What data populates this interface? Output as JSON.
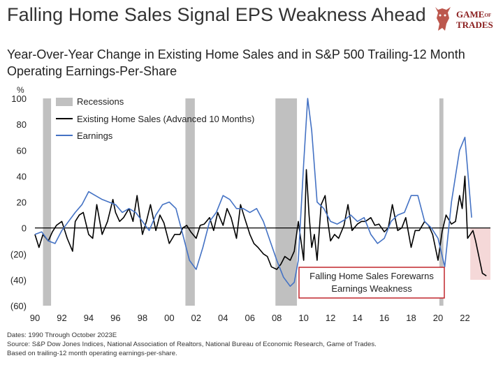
{
  "headline": "Falling Home Sales Signal EPS Weakness Ahead",
  "logo": {
    "line1": "GAME",
    "of": "OF",
    "line2": "TRADES"
  },
  "subtitle_line1": "Year-Over-Year Change in Existing Home Sales and in S&P 500 Trailing-12 Month",
  "subtitle_line2": "Operating Earnings-Per-Share",
  "colors": {
    "earnings": "#4472c4",
    "home_sales": "#000000",
    "recession": "#c0c0c0",
    "highlight": "#f4d4d4",
    "callout_border": "#c0262c"
  },
  "chart_data": {
    "type": "line",
    "ylabel": "%",
    "ylim": [
      -60,
      100
    ],
    "xlim": [
      1990,
      2023.9
    ],
    "y_ticks": [
      100,
      80,
      60,
      40,
      20,
      0,
      -20,
      -40,
      -60
    ],
    "y_tick_labels": [
      "100",
      "80",
      "60",
      "40",
      "20",
      "0",
      "(20)",
      "(40)",
      "(60)"
    ],
    "x_ticks": [
      1990,
      1992,
      1994,
      1996,
      1998,
      2000,
      2002,
      2004,
      2006,
      2008,
      2010,
      2012,
      2014,
      2016,
      2018,
      2020,
      2022
    ],
    "x_tick_labels": [
      "90",
      "92",
      "94",
      "96",
      "98",
      "00",
      "02",
      "04",
      "06",
      "08",
      "10",
      "12",
      "14",
      "16",
      "18",
      "20",
      "22"
    ],
    "legend": [
      "Recessions",
      "Existing Home Sales (Advanced 10 Months)",
      "Earnings"
    ],
    "legend_position": "top-left",
    "recessions": [
      [
        1990.6,
        1991.2
      ],
      [
        2001.2,
        2001.9
      ],
      [
        2007.9,
        2009.5
      ],
      [
        2020.1,
        2020.4
      ]
    ],
    "series": [
      {
        "name": "Existing Home Sales (Advanced 10 Months)",
        "x": [
          1990,
          1990.3,
          1990.6,
          1991,
          1991.3,
          1991.6,
          1992,
          1992.4,
          1992.8,
          1993,
          1993.3,
          1993.6,
          1994,
          1994.3,
          1994.6,
          1995,
          1995.4,
          1995.8,
          1996,
          1996.3,
          1996.6,
          1997,
          1997.3,
          1997.6,
          1998,
          1998.3,
          1998.6,
          1999,
          1999.3,
          1999.6,
          2000,
          2000.4,
          2000.8,
          2001,
          2001.3,
          2001.6,
          2002,
          2002.3,
          2002.6,
          2003,
          2003.3,
          2003.6,
          2004,
          2004.3,
          2004.6,
          2005,
          2005.3,
          2005.6,
          2006,
          2006.3,
          2006.6,
          2007,
          2007.3,
          2007.6,
          2008,
          2008.3,
          2008.6,
          2009,
          2009.3,
          2009.6,
          2010,
          2010.2,
          2010.4,
          2010.6,
          2010.8,
          2011,
          2011.3,
          2011.6,
          2011.8,
          2012,
          2012.3,
          2012.6,
          2013,
          2013.3,
          2013.6,
          2014,
          2014.3,
          2014.6,
          2015,
          2015.3,
          2015.6,
          2016,
          2016.3,
          2016.6,
          2017,
          2017.3,
          2017.6,
          2018,
          2018.3,
          2018.6,
          2019,
          2019.3,
          2019.6,
          2020,
          2020.3,
          2020.6,
          2021,
          2021.3,
          2021.6,
          2021.8,
          2022,
          2022.2,
          2022.4,
          2022.6,
          2022.8,
          2023,
          2023.3,
          2023.6
        ],
        "values": [
          -5,
          -15,
          -5,
          -10,
          -3,
          2,
          5,
          -8,
          -18,
          5,
          10,
          12,
          -5,
          -8,
          18,
          -5,
          5,
          22,
          12,
          5,
          8,
          15,
          5,
          25,
          -5,
          5,
          18,
          -2,
          10,
          4,
          -12,
          -5,
          -5,
          0,
          2,
          -3,
          -8,
          2,
          3,
          8,
          -2,
          12,
          2,
          15,
          8,
          -8,
          18,
          8,
          -5,
          -12,
          -15,
          -20,
          -22,
          -30,
          -32,
          -28,
          -22,
          -25,
          -18,
          5,
          -25,
          45,
          10,
          -15,
          -5,
          -25,
          18,
          25,
          5,
          -10,
          -5,
          -8,
          2,
          18,
          -2,
          3,
          5,
          5,
          8,
          2,
          3,
          -3,
          0,
          18,
          -2,
          0,
          8,
          -15,
          -2,
          -2,
          5,
          2,
          -5,
          -25,
          -3,
          10,
          3,
          5,
          25,
          15,
          40,
          -8,
          -5,
          -2,
          -10,
          -20,
          -35,
          -37
        ]
      },
      {
        "name": "Earnings",
        "x": [
          1990,
          1990.5,
          1991,
          1991.5,
          1992,
          1992.5,
          1993,
          1993.5,
          1994,
          1994.5,
          1995,
          1995.5,
          1996,
          1996.5,
          1997,
          1997.5,
          1998,
          1998.5,
          1999,
          1999.5,
          2000,
          2000.5,
          2001,
          2001.5,
          2002,
          2002.5,
          2003,
          2003.5,
          2004,
          2004.5,
          2005,
          2005.5,
          2006,
          2006.5,
          2007,
          2007.5,
          2008,
          2008.5,
          2009,
          2009.3,
          2009.6,
          2010,
          2010.3,
          2010.6,
          2011,
          2011.5,
          2012,
          2012.5,
          2013,
          2013.5,
          2014,
          2014.5,
          2015,
          2015.5,
          2016,
          2016.5,
          2017,
          2017.5,
          2018,
          2018.5,
          2019,
          2019.5,
          2020,
          2020.5,
          2021,
          2021.3,
          2021.6,
          2022,
          2022.5
        ],
        "values": [
          -5,
          -3,
          -10,
          -12,
          -2,
          5,
          12,
          18,
          28,
          25,
          22,
          20,
          18,
          12,
          15,
          12,
          5,
          -2,
          10,
          18,
          20,
          15,
          -5,
          -25,
          -32,
          -15,
          5,
          12,
          25,
          22,
          15,
          15,
          12,
          15,
          5,
          -10,
          -25,
          -38,
          -45,
          -42,
          -25,
          50,
          100,
          75,
          20,
          15,
          5,
          3,
          6,
          10,
          5,
          8,
          -5,
          -12,
          -8,
          5,
          10,
          12,
          25,
          25,
          5,
          0,
          -8,
          -30,
          20,
          40,
          60,
          70,
          8
        ]
      }
    ],
    "annotation": {
      "text_line1": "Falling Home Sales Forewarns",
      "text_line2": "Earnings Weakness"
    }
  },
  "footer": {
    "line1": "Dates: 1990 Through  October 2023E",
    "line2": "Source: S&P Dow Jones Indices, National Association of Realtors, National Bureau of Economic Research, Game of Trades.",
    "line3": "Based on trailing-12 month operating earnings-per-share."
  }
}
